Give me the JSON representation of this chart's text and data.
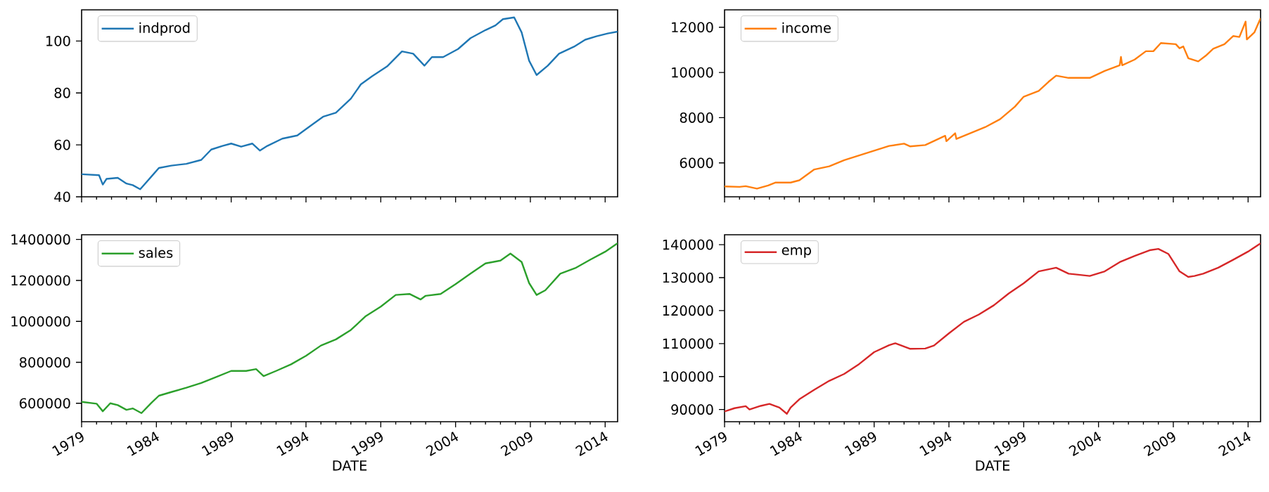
{
  "chart_data": [
    {
      "type": "line",
      "legend": "top left",
      "tick_labels": "y",
      "xlim": [
        "1979-01",
        "2014-11"
      ],
      "ylim": [
        40,
        112
      ],
      "yticks": [
        40,
        60,
        80,
        100
      ],
      "xticks": [
        {
          "value": "1979",
          "label": null
        },
        {
          "value": "1984",
          "label": null
        },
        {
          "value": "1989",
          "label": null
        },
        {
          "value": "1994",
          "label": null
        },
        {
          "value": "1999",
          "label": null
        },
        {
          "value": "2004",
          "label": null
        },
        {
          "value": "2009",
          "label": null
        },
        {
          "value": "2014",
          "label": null
        }
      ],
      "series": [
        {
          "name": "indprod",
          "color": "#1f77b4",
          "x": [
            "1979-01",
            "1980-03",
            "1980-06",
            "1980-09",
            "1981-06",
            "1982-01",
            "1982-06",
            "1982-12",
            "1983-09",
            "1984-03",
            "1985-01",
            "1986-01",
            "1987-01",
            "1987-09",
            "1988-06",
            "1989-01",
            "1989-09",
            "1990-06",
            "1990-12",
            "1991-06",
            "1992-06",
            "1993-06",
            "1994-06",
            "1995-03",
            "1996-01",
            "1997-01",
            "1997-09",
            "1998-06",
            "1999-06",
            "2000-06",
            "2001-03",
            "2001-12",
            "2002-06",
            "2003-03",
            "2004-03",
            "2005-01",
            "2006-01",
            "2006-09",
            "2007-03",
            "2007-12",
            "2008-06",
            "2008-12",
            "2009-06",
            "2010-03",
            "2010-12",
            "2011-12",
            "2012-09",
            "2013-06",
            "2014-03",
            "2014-11"
          ],
          "values": [
            48.7,
            48.3,
            44.7,
            46.9,
            47.3,
            45.1,
            44.5,
            42.9,
            47.8,
            51.1,
            52,
            52.7,
            54.2,
            58.2,
            59.6,
            60.5,
            59.3,
            60.5,
            57.8,
            59.6,
            62.4,
            63.6,
            67.8,
            70.9,
            72.4,
            77.8,
            83.3,
            86.4,
            90.2,
            96,
            95.1,
            90.5,
            93.8,
            93.8,
            96.9,
            101.1,
            104.2,
            106,
            108.4,
            109.1,
            103.3,
            92.4,
            86.9,
            90.5,
            95.1,
            97.8,
            100.5,
            101.8,
            102.9,
            103.6
          ]
        }
      ]
    },
    {
      "type": "line",
      "legend": "top left",
      "tick_labels": "y",
      "xlim": [
        "1979-01",
        "2014-11"
      ],
      "ylim": [
        4500,
        12770
      ],
      "yticks": [
        6000,
        8000,
        10000,
        12000
      ],
      "xticks": [
        {
          "value": "1979",
          "label": null
        },
        {
          "value": "1984",
          "label": null
        },
        {
          "value": "1989",
          "label": null
        },
        {
          "value": "1994",
          "label": null
        },
        {
          "value": "1999",
          "label": null
        },
        {
          "value": "2004",
          "label": null
        },
        {
          "value": "2009",
          "label": null
        },
        {
          "value": "2014",
          "label": null
        }
      ],
      "series": [
        {
          "name": "income",
          "color": "#ff7f0e",
          "x": [
            "1979-01",
            "1980-01",
            "1980-06",
            "1981-03",
            "1981-12",
            "1982-06",
            "1983-06",
            "1984-01",
            "1985-01",
            "1986-01",
            "1987-01",
            "1988-01",
            "1989-01",
            "1990-01",
            "1991-01",
            "1991-06",
            "1992-06",
            "1993-10",
            "1993-11",
            "1994-06",
            "1994-07",
            "1995-06",
            "1996-06",
            "1997-06",
            "1998-06",
            "1999-01",
            "2000-01",
            "2000-09",
            "2001-03",
            "2002-01",
            "2003-06",
            "2004-06",
            "2005-06",
            "2005-07",
            "2005-08",
            "2006-06",
            "2007-03",
            "2007-09",
            "2008-03",
            "2009-03",
            "2009-06",
            "2009-09",
            "2010-01",
            "2010-09",
            "2011-03",
            "2011-09",
            "2012-06",
            "2013-01",
            "2013-06",
            "2013-11",
            "2013-12",
            "2014-06",
            "2014-11"
          ],
          "values": [
            4960,
            4940,
            4970,
            4860,
            5000,
            5130,
            5130,
            5230,
            5710,
            5850,
            6120,
            6330,
            6540,
            6750,
            6850,
            6730,
            6790,
            7200,
            6960,
            7310,
            7060,
            7310,
            7580,
            7930,
            8490,
            8930,
            9180,
            9590,
            9860,
            9760,
            9760,
            10070,
            10320,
            10690,
            10320,
            10570,
            10940,
            10940,
            11300,
            11250,
            11070,
            11150,
            10630,
            10490,
            10740,
            11050,
            11250,
            11610,
            11570,
            12250,
            11460,
            11770,
            12400
          ]
        }
      ]
    },
    {
      "type": "line",
      "legend": "top left",
      "xlabel": "DATE",
      "xlim": [
        "1979-01",
        "2014-11"
      ],
      "ylim": [
        510000,
        1423000
      ],
      "yticks": [
        600000,
        800000,
        1000000,
        1200000,
        1400000
      ],
      "xticks": [
        {
          "value": "1979",
          "label": "1979"
        },
        {
          "value": "1984",
          "label": "1984"
        },
        {
          "value": "1989",
          "label": "1989"
        },
        {
          "value": "1994",
          "label": "1994"
        },
        {
          "value": "1999",
          "label": "1999"
        },
        {
          "value": "2004",
          "label": "2004"
        },
        {
          "value": "2009",
          "label": "2009"
        },
        {
          "value": "2014",
          "label": "2014"
        }
      ],
      "series": [
        {
          "name": "sales",
          "color": "#2ca02c",
          "x": [
            "1979-01",
            "1980-01",
            "1980-06",
            "1980-12",
            "1981-06",
            "1982-01",
            "1982-06",
            "1983-01",
            "1983-09",
            "1984-03",
            "1985-01",
            "1986-01",
            "1987-01",
            "1988-01",
            "1989-01",
            "1990-01",
            "1990-09",
            "1991-03",
            "1992-01",
            "1993-01",
            "1994-01",
            "1995-01",
            "1996-01",
            "1997-01",
            "1998-01",
            "1999-01",
            "2000-01",
            "2000-12",
            "2001-09",
            "2002-01",
            "2003-01",
            "2004-01",
            "2005-01",
            "2006-01",
            "2007-01",
            "2007-09",
            "2008-06",
            "2008-12",
            "2009-06",
            "2010-01",
            "2011-01",
            "2012-01",
            "2013-01",
            "2014-01",
            "2014-11"
          ],
          "values": [
            607000,
            598000,
            561000,
            600000,
            591000,
            568000,
            575000,
            552000,
            602000,
            637000,
            655000,
            676000,
            699000,
            728000,
            758000,
            758000,
            767000,
            733000,
            758000,
            790000,
            832000,
            882000,
            912000,
            958000,
            1026000,
            1072000,
            1129000,
            1134000,
            1107000,
            1125000,
            1134000,
            1182000,
            1233000,
            1283000,
            1297000,
            1331000,
            1290000,
            1187000,
            1129000,
            1152000,
            1233000,
            1260000,
            1301000,
            1340000,
            1382000
          ]
        }
      ]
    },
    {
      "type": "line",
      "legend": "top left",
      "xlabel": "DATE",
      "xlim": [
        "1979-01",
        "2014-11"
      ],
      "ylim": [
        86300,
        143000
      ],
      "yticks": [
        90000,
        100000,
        110000,
        120000,
        130000,
        140000
      ],
      "xticks": [
        {
          "value": "1979",
          "label": "1979"
        },
        {
          "value": "1984",
          "label": "1984"
        },
        {
          "value": "1989",
          "label": "1989"
        },
        {
          "value": "1994",
          "label": "1994"
        },
        {
          "value": "1999",
          "label": "1999"
        },
        {
          "value": "2004",
          "label": "2004"
        },
        {
          "value": "2009",
          "label": "2009"
        },
        {
          "value": "2014",
          "label": "2014"
        }
      ],
      "series": [
        {
          "name": "emp",
          "color": "#d62728",
          "x": [
            "1979-01",
            "1979-09",
            "1980-06",
            "1980-09",
            "1981-06",
            "1982-01",
            "1982-09",
            "1983-03",
            "1983-06",
            "1984-01",
            "1985-01",
            "1986-01",
            "1987-01",
            "1988-01",
            "1989-01",
            "1990-01",
            "1990-06",
            "1991-06",
            "1992-06",
            "1993-01",
            "1994-01",
            "1995-01",
            "1996-01",
            "1997-01",
            "1998-01",
            "1999-01",
            "2000-01",
            "2001-03",
            "2002-01",
            "2003-06",
            "2004-06",
            "2005-06",
            "2006-06",
            "2007-06",
            "2008-01",
            "2008-09",
            "2009-06",
            "2010-01",
            "2010-06",
            "2011-01",
            "2012-01",
            "2013-01",
            "2014-01",
            "2014-11"
          ],
          "values": [
            89400,
            90400,
            91000,
            90000,
            91100,
            91700,
            90600,
            88700,
            90600,
            93100,
            96000,
            98700,
            100800,
            103800,
            107400,
            109500,
            110100,
            108400,
            108500,
            109400,
            113100,
            116600,
            118800,
            121600,
            125200,
            128300,
            131900,
            133000,
            131200,
            130500,
            131900,
            134700,
            136600,
            138300,
            138700,
            137200,
            131900,
            130200,
            130500,
            131200,
            133000,
            135400,
            137900,
            140400
          ]
        }
      ]
    }
  ]
}
